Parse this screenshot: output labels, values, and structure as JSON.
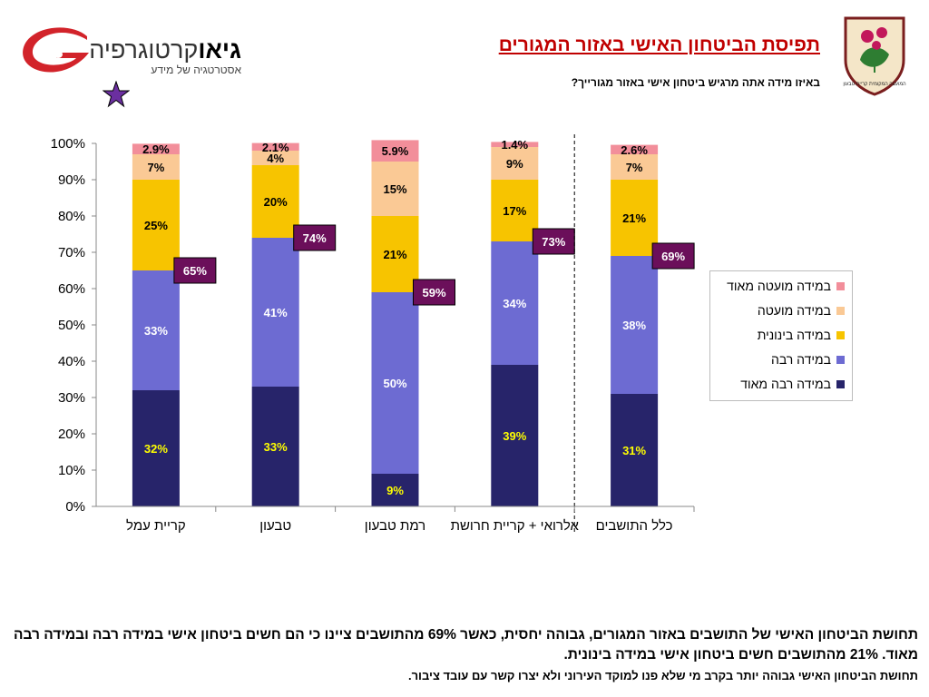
{
  "header": {
    "title": "תפיסת הביטחון האישי באזור המגורים",
    "subtitle": "באיזו מידה אתה מרגיש ביטחון אישי באזור מגורייך?"
  },
  "brand": {
    "name_bold": "גיאו",
    "name_rest": "קרטוגרפיה",
    "tagline": "אסטרטגיה של מידע",
    "accent_color": "#d2232a"
  },
  "star_icon_color": "#6b2fa0",
  "emblem": {
    "text": "המועצה המקומית קריית טבעון",
    "border_color": "#7a1e1e",
    "fill_color": "#f4e6c8",
    "leaf_color": "#2e7d32",
    "flower_color": "#c2185b"
  },
  "chart_data": {
    "type": "bar",
    "stacked": true,
    "categories": [
      "קריית עמל",
      "טבעון",
      "רמת טבעון",
      "אלרואי + קריית חרושת",
      "כלל התושבים"
    ],
    "series": [
      {
        "name": "במידה רבה מאוד",
        "color": "#27246a",
        "label_color": "#ffff00",
        "values": [
          32,
          33,
          9,
          39,
          31
        ],
        "labels": [
          "32%",
          "33%",
          "9%",
          "39%",
          "31%"
        ]
      },
      {
        "name": "במידה רבה",
        "color": "#6d6bd2",
        "label_color": "#ffffff",
        "values": [
          33,
          41,
          50,
          34,
          38
        ],
        "labels": [
          "33%",
          "41%",
          "50%",
          "34%",
          "38%"
        ]
      },
      {
        "name": "במידה בינונית",
        "color": "#f7c400",
        "label_color": "#000000",
        "values": [
          25,
          20,
          21,
          17,
          21
        ],
        "labels": [
          "25%",
          "20%",
          "21%",
          "17%",
          "21%"
        ]
      },
      {
        "name": "במידה מועטה",
        "color": "#fac995",
        "label_color": "#000000",
        "values": [
          7,
          4,
          15,
          9,
          7
        ],
        "labels": [
          "7%",
          "4%",
          "15%",
          "9%",
          "7%"
        ]
      },
      {
        "name": "במידה מועטה מאוד",
        "color": "#f28e9a",
        "label_color": "#000000",
        "values": [
          2.9,
          2.1,
          5.9,
          1.4,
          2.6
        ],
        "labels": [
          "2.9%",
          "2.1%",
          "5.9%",
          "1.4%",
          "2.6%"
        ]
      }
    ],
    "totals": {
      "values": [
        65,
        74,
        59,
        73,
        69
      ],
      "labels": [
        "65%",
        "74%",
        "59%",
        "73%",
        "69%"
      ],
      "box_color": "#6b0f5a"
    },
    "ylim": [
      0,
      100
    ],
    "yticks": [
      "0%",
      "10%",
      "20%",
      "30%",
      "40%",
      "50%",
      "60%",
      "70%",
      "80%",
      "90%",
      "100%"
    ],
    "divider_after_category": 4,
    "legend_position": "right",
    "grid": false
  },
  "notes": {
    "line1": "תחושת הביטחון האישי של התושבים באזור המגורים, גבוהה יחסית, כאשר 69% מהתושבים ציינו כי הם חשים ביטחון אישי במידה רבה ובמידה רבה מאוד. 21% מהתושבים חשים ביטחון אישי במידה בינונית.",
    "line2": "תחושת הביטחון האישי גבוהה יותר בקרב מי שלא פנו למוקד העירוני ולא יצרו קשר עם עובד ציבור."
  }
}
